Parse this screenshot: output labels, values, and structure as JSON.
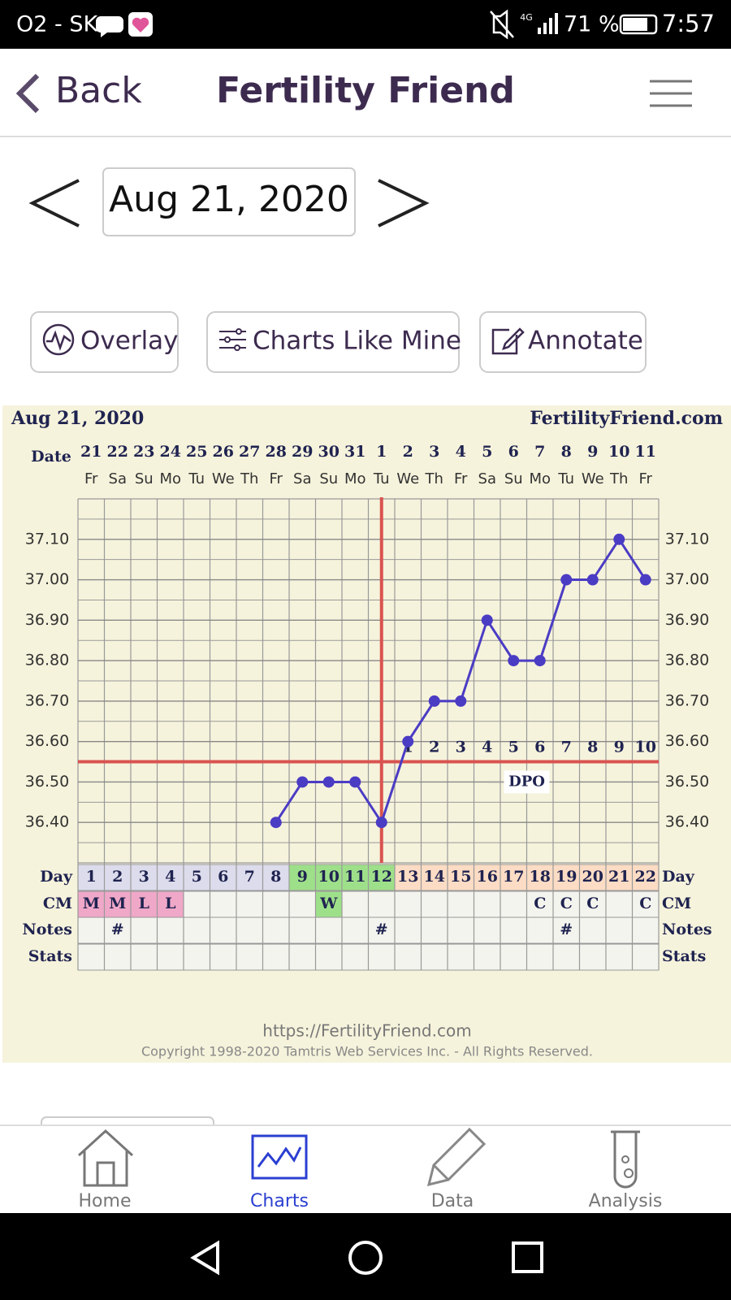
{
  "status_bar": {
    "carrier": "O2 - SK",
    "network": "4G",
    "battery": "71 %",
    "time": "7:57"
  },
  "header": {
    "back": "Back",
    "title": "Fertility Friend"
  },
  "date_nav": {
    "date": "Aug 21, 2020"
  },
  "buttons": [
    "Overlay",
    "Charts Like Mine",
    "Annotate"
  ],
  "chart_data": {
    "type": "line",
    "title": "Aug 21, 2020",
    "site": "FertilityFriend.com",
    "date_label": "Date",
    "categories": [
      "21",
      "22",
      "23",
      "24",
      "25",
      "26",
      "27",
      "28",
      "29",
      "30",
      "31",
      "1",
      "2",
      "3",
      "4",
      "5",
      "6",
      "7",
      "8",
      "9",
      "10",
      "11"
    ],
    "weekdays": [
      "Fr",
      "Sa",
      "Su",
      "Mo",
      "Tu",
      "We",
      "Th",
      "Fr",
      "Sa",
      "Su",
      "Mo",
      "Tu",
      "We",
      "Th",
      "Fr",
      "Sa",
      "Su",
      "Mo",
      "Tu",
      "We",
      "Th",
      "Fr"
    ],
    "series": [
      {
        "color": "#4b3cc4",
        "values": [
          null,
          null,
          null,
          null,
          null,
          null,
          null,
          36.4,
          36.5,
          36.5,
          36.5,
          36.4,
          36.6,
          36.7,
          36.7,
          36.9,
          36.8,
          36.8,
          37.0,
          37.0,
          37.1,
          37.0
        ]
      }
    ],
    "ylim": [
      36.3,
      37.2
    ],
    "yticks": [
      {
        "value": 36.4,
        "label": "36.40"
      },
      {
        "value": 36.5,
        "label": "36.50"
      },
      {
        "value": 36.6,
        "label": "36.60"
      },
      {
        "value": 36.7,
        "label": "36.70"
      },
      {
        "value": 36.8,
        "label": "36.80"
      },
      {
        "value": 36.9,
        "label": "36.90"
      },
      {
        "value": 37.0,
        "label": "37.00"
      },
      {
        "value": 37.1,
        "label": "37.10"
      }
    ],
    "y_minor_grid": [
      36.35,
      36.45,
      36.55,
      36.65,
      36.75,
      36.85,
      36.95,
      37.05,
      37.15
    ],
    "grid": true,
    "coverline": 36.55,
    "coverline_color": "#d9534f",
    "ovulation_day": 12,
    "dpo": [
      null,
      null,
      null,
      null,
      null,
      null,
      null,
      null,
      null,
      null,
      null,
      null,
      1,
      2,
      3,
      4,
      5,
      6,
      7,
      8,
      9,
      10
    ],
    "dpo_label": "DPO",
    "row_labels": {
      "day": "Day",
      "cm": "CM",
      "notes": "Notes",
      "stats": "Stats"
    },
    "cycle_days": [
      1,
      2,
      3,
      4,
      5,
      6,
      7,
      8,
      9,
      10,
      11,
      12,
      13,
      14,
      15,
      16,
      17,
      18,
      19,
      20,
      21,
      22
    ],
    "day_colors": [
      "#dcdcec",
      "#dcdcec",
      "#dcdcec",
      "#dcdcec",
      "#dcdcec",
      "#dcdcec",
      "#dcdcec",
      "#dcdcec",
      "#9ee08a",
      "#9ee08a",
      "#9ee08a",
      "#9ee08a",
      "#fcdcc4",
      "#fcdcc4",
      "#fcdcc4",
      "#fcdcc4",
      "#fcdcc4",
      "#fcdcc4",
      "#fcdcc4",
      "#fcdcc4",
      "#fcdcc4",
      "#fcdcc4"
    ],
    "cm": [
      "M",
      "M",
      "L",
      "L",
      null,
      null,
      null,
      null,
      null,
      "W",
      null,
      null,
      null,
      null,
      null,
      null,
      null,
      "C",
      "C",
      "C",
      null,
      "C"
    ],
    "cm_colors": [
      "#f0a8c8",
      "#f0a8c8",
      "#f0a8c8",
      "#f0a8c8",
      null,
      null,
      null,
      null,
      null,
      "#9ee08a",
      null,
      null,
      null,
      null,
      null,
      null,
      null,
      null,
      null,
      null,
      null,
      null
    ],
    "notes": [
      null,
      "#",
      null,
      null,
      null,
      null,
      null,
      null,
      null,
      null,
      null,
      "#",
      null,
      null,
      null,
      null,
      null,
      null,
      "#",
      null,
      null,
      null
    ]
  },
  "footer": {
    "url": "https://FertilityFriend.com",
    "copyright": "Copyright 1998-2020 Tamtris Web Services Inc. - All Rights Reserved."
  },
  "bottom_nav": [
    "Home",
    "Charts",
    "Data",
    "Analysis"
  ]
}
